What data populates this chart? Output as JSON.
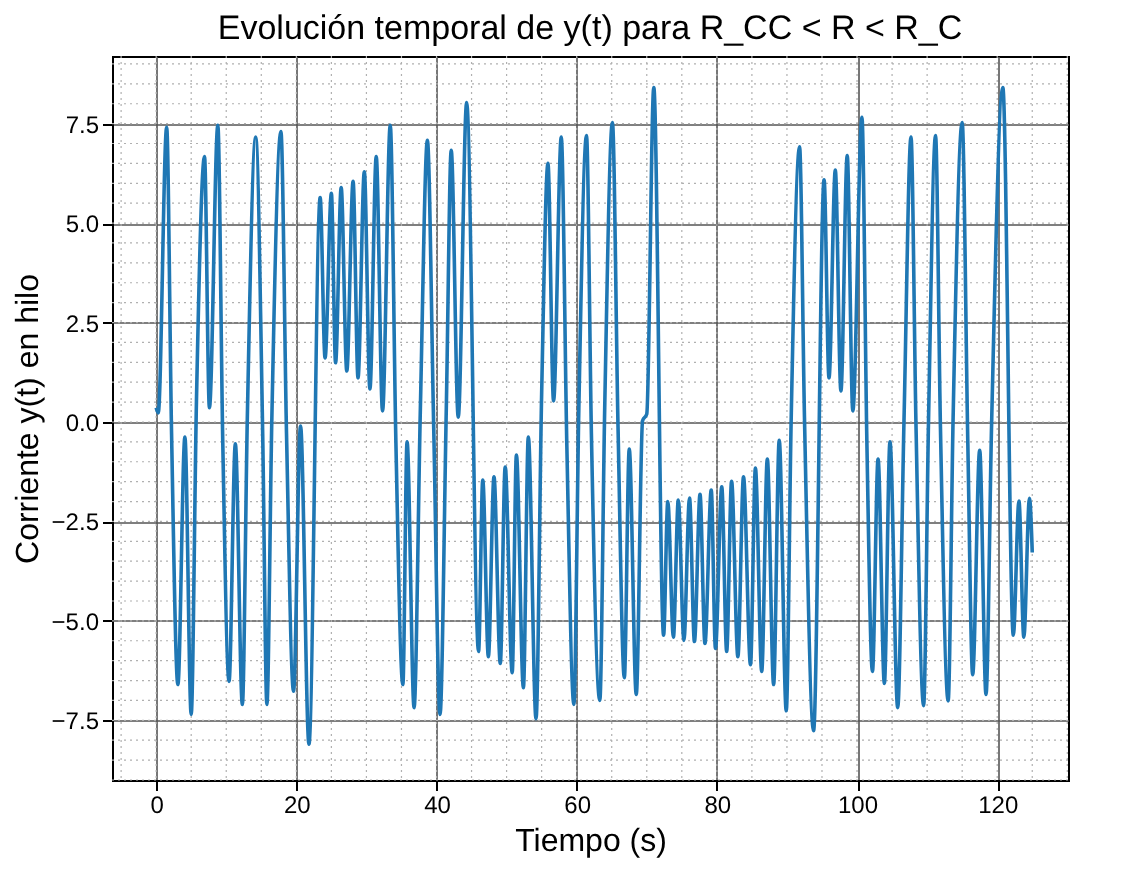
{
  "chart_data": {
    "type": "line",
    "title": "Evolución temporal de y(t) para R_CC < R < R_C",
    "xlabel": "Tiempo (s)",
    "ylabel": "Corriente y(t) en hilo",
    "x": [
      0,
      0.3,
      1.5,
      2.2,
      3.1,
      4.1,
      5.0,
      5.75,
      6.9,
      7.6,
      8.8,
      9.5,
      10.4,
      11.3,
      12.3,
      13.0,
      14.2,
      15.2,
      15.8,
      16.5,
      17.8,
      18.6,
      19.6,
      20.6,
      21.8,
      23.4,
      24.1,
      25.0,
      25.6,
      26.4,
      27.2,
      28.1,
      28.8,
      29.7,
      30.5,
      31.4,
      32.3,
      33.4,
      34.2,
      35.2,
      35.8,
      36.8,
      37.7,
      38.7,
      39.6,
      40.5,
      41.4,
      42.1,
      43.1,
      44.3,
      46.0,
      46.6,
      47.4,
      48.2,
      49.1,
      49.8,
      50.8,
      51.4,
      52.4,
      53.1,
      54.2,
      55.0,
      55.9,
      56.7,
      57.8,
      58.6,
      59.6,
      60.3,
      61.4,
      62.1,
      63.3,
      64.0,
      65.1,
      65.9,
      66.8,
      67.5,
      68.5,
      69.4,
      70.0,
      71.0,
      72.4,
      73.0,
      73.8,
      74.5,
      75.3,
      76.1,
      76.8,
      77.6,
      78.3,
      79.2,
      79.8,
      80.7,
      81.4,
      82.1,
      83.0,
      83.8,
      84.8,
      85.5,
      86.4,
      87.2,
      88.1,
      88.9,
      89.9,
      90.6,
      91.8,
      92.5,
      93.8,
      95.3,
      96.0,
      96.9,
      97.7,
      98.6,
      99.4,
      100.7,
      101.4,
      102.2,
      103.0,
      103.9,
      104.7,
      105.8,
      106.7,
      107.7,
      108.4,
      109.5,
      110.2,
      111.2,
      111.9,
      113.0,
      113.7,
      115.0,
      115.8,
      116.5,
      117.5,
      118.4,
      119.2,
      120.8,
      122.3,
      123.1,
      123.8,
      124.6,
      125.0
    ],
    "series": [
      {
        "color": "#1f77b4",
        "values": [
          0.36,
          0.23,
          7.41,
          -0.3,
          -6.6,
          -0.38,
          -7.35,
          0.53,
          6.67,
          0.36,
          7.46,
          -0.46,
          -6.52,
          -0.55,
          -7.1,
          0.03,
          7.16,
          -0.3,
          -7.1,
          0.03,
          7.3,
          -0.3,
          -6.77,
          -0.1,
          -8.1,
          5.64,
          1.61,
          5.75,
          1.49,
          5.89,
          1.28,
          6.05,
          1.11,
          6.29,
          0.83,
          6.67,
          0.28,
          7.46,
          -0.46,
          -6.6,
          -0.5,
          -7.18,
          0.36,
          7.08,
          -0.13,
          -7.35,
          0.36,
          6.83,
          0.12,
          8.03,
          -5.77,
          -1.46,
          -5.9,
          -1.38,
          -6.07,
          -1.13,
          -6.3,
          -0.83,
          -6.68,
          -0.38,
          -7.46,
          0.7,
          6.5,
          0.53,
          7.16,
          -0.63,
          -7.1,
          0.28,
          7.2,
          -0.3,
          -7.0,
          0.36,
          7.53,
          -0.13,
          -6.43,
          -0.68,
          -6.85,
          0.03,
          0.2,
          8.41,
          -5.36,
          -2.0,
          -5.41,
          -1.96,
          -5.49,
          -1.91,
          -5.52,
          -1.82,
          -5.57,
          -1.71,
          -5.69,
          -1.63,
          -5.77,
          -1.49,
          -5.9,
          -1.38,
          -6.1,
          -1.16,
          -6.27,
          -0.93,
          -6.6,
          -0.46,
          -7.26,
          0.03,
          6.92,
          0.12,
          -7.76,
          6.09,
          1.11,
          6.33,
          0.78,
          6.7,
          0.28,
          7.66,
          -0.46,
          -6.27,
          -0.93,
          -6.57,
          -0.5,
          -7.18,
          0.03,
          7.16,
          0.03,
          -7.13,
          0.03,
          7.2,
          -0.13,
          -7.01,
          0.03,
          7.53,
          -0.46,
          -6.35,
          -0.71,
          -6.85,
          -0.05,
          8.41,
          -5.36,
          -1.99,
          -5.41,
          -1.92,
          -3.28
        ]
      }
    ],
    "xlim": [
      -6.3,
      130.1
    ],
    "ylim": [
      -9.0,
      9.2
    ],
    "xticks": [
      0,
      20,
      40,
      60,
      80,
      100,
      120
    ],
    "yticks": [
      -7.5,
      {
        "value": -5,
        "label": "−5.0"
      },
      -2.5,
      {
        "value": 0,
        "label": "0.0"
      },
      2.5,
      {
        "value": 5,
        "label": "5.0"
      },
      7.5
    ],
    "grid": true,
    "line_style": "solid",
    "marker": "none"
  }
}
